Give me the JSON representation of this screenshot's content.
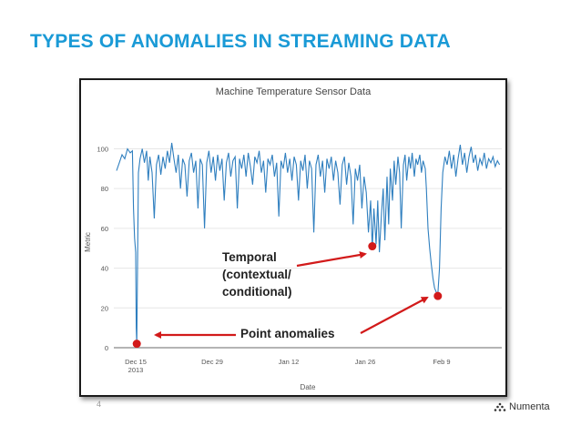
{
  "slide": {
    "title": "TYPES OF ANOMALIES IN STREAMING DATA",
    "page_number": "4",
    "brand": "Numenta"
  },
  "colors": {
    "title": "#1a9ad6",
    "series": "#2f7fbf",
    "marker": "#d21a1a",
    "arrow": "#d21a1a"
  },
  "chart_data": {
    "type": "line",
    "title": "Machine Temperature Sensor Data",
    "xlabel": "Date",
    "ylabel": "Metric",
    "ylim": [
      0,
      108
    ],
    "yticks": [
      0,
      20,
      40,
      60,
      80,
      100
    ],
    "xticks": [
      {
        "label": "Dec 15",
        "sub": "2013",
        "day": 0
      },
      {
        "label": "Dec 29",
        "sub": "",
        "day": 14
      },
      {
        "label": "Jan 12",
        "sub": "",
        "day": 28
      },
      {
        "label": "Jan 26",
        "sub": "",
        "day": 42
      },
      {
        "label": "Feb 9",
        "sub": "",
        "day": 56
      }
    ],
    "xlim": [
      -4,
      67
    ],
    "grid": "horizontal",
    "series": [
      {
        "values": [
          [
            -3.5,
            89
          ],
          [
            -3,
            93
          ],
          [
            -2.5,
            97
          ],
          [
            -2,
            95
          ],
          [
            -1.5,
            100
          ],
          [
            -1,
            98
          ],
          [
            -0.6,
            99
          ],
          [
            -0.4,
            70
          ],
          [
            -0.2,
            55
          ],
          [
            0,
            48
          ],
          [
            0.1,
            10
          ],
          [
            0.2,
            2
          ],
          [
            0.35,
            45
          ],
          [
            0.5,
            88
          ],
          [
            0.8,
            95
          ],
          [
            1.2,
            100
          ],
          [
            1.6,
            93
          ],
          [
            2,
            99
          ],
          [
            2.3,
            84
          ],
          [
            2.6,
            96
          ],
          [
            3,
            88
          ],
          [
            3.4,
            65
          ],
          [
            3.8,
            92
          ],
          [
            4.2,
            97
          ],
          [
            4.6,
            87
          ],
          [
            5,
            96
          ],
          [
            5.4,
            90
          ],
          [
            5.8,
            99
          ],
          [
            6.2,
            93
          ],
          [
            6.6,
            103
          ],
          [
            7,
            95
          ],
          [
            7.4,
            88
          ],
          [
            7.8,
            97
          ],
          [
            8.2,
            80
          ],
          [
            8.6,
            95
          ],
          [
            9,
            92
          ],
          [
            9.4,
            76
          ],
          [
            9.8,
            94
          ],
          [
            10.2,
            98
          ],
          [
            10.6,
            88
          ],
          [
            11,
            94
          ],
          [
            11.4,
            70
          ],
          [
            11.8,
            95
          ],
          [
            12.2,
            92
          ],
          [
            12.6,
            60
          ],
          [
            13,
            93
          ],
          [
            13.4,
            99
          ],
          [
            13.8,
            88
          ],
          [
            14.2,
            96
          ],
          [
            14.6,
            84
          ],
          [
            15,
            97
          ],
          [
            15.4,
            89
          ],
          [
            15.8,
            95
          ],
          [
            16.2,
            74
          ],
          [
            16.6,
            93
          ],
          [
            17,
            98
          ],
          [
            17.4,
            86
          ],
          [
            17.8,
            94
          ],
          [
            18.2,
            96
          ],
          [
            18.6,
            70
          ],
          [
            19,
            95
          ],
          [
            19.4,
            90
          ],
          [
            19.8,
            97
          ],
          [
            20.2,
            86
          ],
          [
            20.6,
            98
          ],
          [
            21,
            91
          ],
          [
            21.4,
            82
          ],
          [
            21.8,
            96
          ],
          [
            22.2,
            93
          ],
          [
            22.6,
            99
          ],
          [
            23,
            88
          ],
          [
            23.4,
            94
          ],
          [
            23.8,
            78
          ],
          [
            24.2,
            95
          ],
          [
            24.6,
            92
          ],
          [
            25,
            97
          ],
          [
            25.4,
            86
          ],
          [
            25.8,
            93
          ],
          [
            26.2,
            66
          ],
          [
            26.6,
            94
          ],
          [
            27,
            90
          ],
          [
            27.4,
            98
          ],
          [
            27.8,
            88
          ],
          [
            28.2,
            95
          ],
          [
            28.6,
            84
          ],
          [
            29,
            96
          ],
          [
            29.4,
            92
          ],
          [
            29.8,
            74
          ],
          [
            30.2,
            94
          ],
          [
            30.6,
            89
          ],
          [
            31,
            97
          ],
          [
            31.4,
            80
          ],
          [
            31.8,
            94
          ],
          [
            32.2,
            90
          ],
          [
            32.6,
            58
          ],
          [
            33,
            92
          ],
          [
            33.4,
            97
          ],
          [
            33.8,
            86
          ],
          [
            34.2,
            94
          ],
          [
            34.6,
            78
          ],
          [
            35,
            95
          ],
          [
            35.4,
            90
          ],
          [
            35.8,
            96
          ],
          [
            36.2,
            84
          ],
          [
            36.6,
            94
          ],
          [
            37,
            88
          ],
          [
            37.4,
            72
          ],
          [
            37.8,
            92
          ],
          [
            38.2,
            96
          ],
          [
            38.6,
            82
          ],
          [
            39,
            93
          ],
          [
            39.4,
            86
          ],
          [
            39.8,
            62
          ],
          [
            40.2,
            90
          ],
          [
            40.6,
            84
          ],
          [
            41,
            92
          ],
          [
            41.4,
            70
          ],
          [
            41.8,
            86
          ],
          [
            42.2,
            78
          ],
          [
            42.6,
            58
          ],
          [
            43,
            74
          ],
          [
            43.3,
            50
          ],
          [
            43.6,
            70
          ],
          [
            44,
            52
          ],
          [
            44.3,
            74
          ],
          [
            44.6,
            48
          ],
          [
            45,
            68
          ],
          [
            45.3,
            80
          ],
          [
            45.6,
            54
          ],
          [
            46,
            86
          ],
          [
            46.3,
            62
          ],
          [
            46.6,
            90
          ],
          [
            47,
            74
          ],
          [
            47.3,
            94
          ],
          [
            47.6,
            82
          ],
          [
            48,
            96
          ],
          [
            48.3,
            88
          ],
          [
            48.6,
            60
          ],
          [
            49,
            92
          ],
          [
            49.3,
            97
          ],
          [
            49.6,
            84
          ],
          [
            50,
            96
          ],
          [
            50.3,
            90
          ],
          [
            50.6,
            98
          ],
          [
            51,
            86
          ],
          [
            51.3,
            95
          ],
          [
            51.6,
            92
          ],
          [
            52,
            97
          ],
          [
            52.3,
            88
          ],
          [
            52.6,
            94
          ],
          [
            53,
            90
          ],
          [
            53.2,
            80
          ],
          [
            53.5,
            60
          ],
          [
            53.8,
            50
          ],
          [
            54.1,
            42
          ],
          [
            54.4,
            35
          ],
          [
            54.7,
            30
          ],
          [
            55,
            28
          ],
          [
            55.3,
            27
          ],
          [
            55.6,
            40
          ],
          [
            55.9,
            70
          ],
          [
            56.2,
            88
          ],
          [
            56.6,
            96
          ],
          [
            57,
            92
          ],
          [
            57.4,
            99
          ],
          [
            57.8,
            90
          ],
          [
            58.2,
            97
          ],
          [
            58.6,
            86
          ],
          [
            59,
            95
          ],
          [
            59.4,
            102
          ],
          [
            59.8,
            92
          ],
          [
            60.2,
            98
          ],
          [
            60.6,
            88
          ],
          [
            61,
            96
          ],
          [
            61.4,
            101
          ],
          [
            61.8,
            93
          ],
          [
            62.2,
            97
          ],
          [
            62.6,
            89
          ],
          [
            63,
            95
          ],
          [
            63.4,
            92
          ],
          [
            63.8,
            98
          ],
          [
            64.2,
            90
          ],
          [
            64.6,
            95
          ],
          [
            65,
            93
          ],
          [
            65.4,
            96
          ],
          [
            65.8,
            91
          ],
          [
            66.2,
            94
          ],
          [
            66.6,
            92
          ]
        ]
      }
    ],
    "highlights": [
      {
        "day": 0.2,
        "value": 2
      },
      {
        "day": 43.3,
        "value": 51
      },
      {
        "day": 55.3,
        "value": 26
      }
    ],
    "annotations": {
      "temporal_line1": "Temporal",
      "temporal_line2": "(contextual/",
      "temporal_line3": "conditional)",
      "point": "Point anomalies"
    }
  }
}
